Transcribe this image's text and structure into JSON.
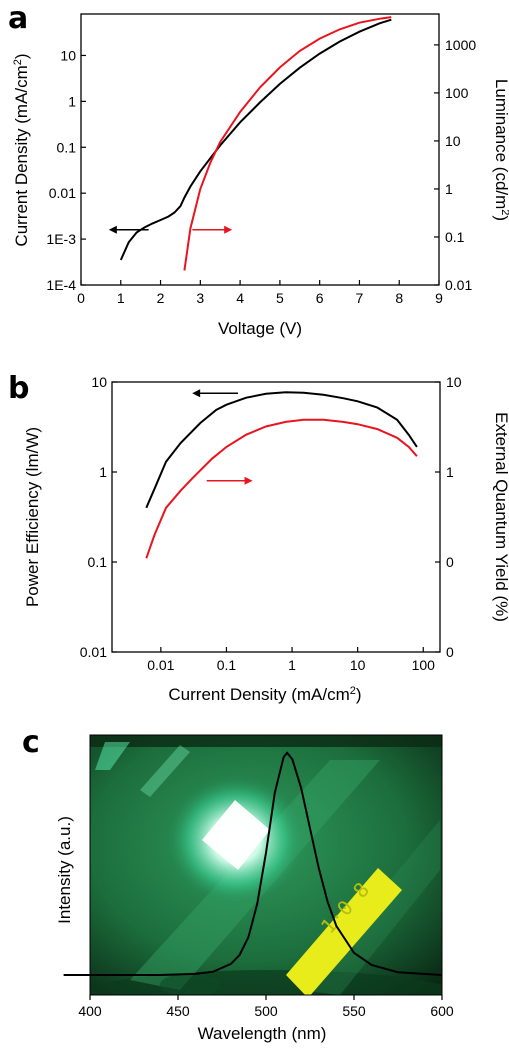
{
  "chart_data": [
    {
      "panel": "a",
      "type": "line",
      "xlabel": "Voltage (V)",
      "ylabel_left": "Current Density (mA/cm²)",
      "ylabel_right": "Luminance (cd/m²)",
      "x_ticks": [
        "0",
        "1",
        "2",
        "3",
        "4",
        "5",
        "6",
        "7",
        "8",
        "9"
      ],
      "y_left_ticks": [
        "1E-4",
        "1E-3",
        "0.01",
        "0.1",
        "1",
        "10"
      ],
      "y_right_ticks": [
        "0.01",
        "0.1",
        "1",
        "10",
        "100",
        "1000"
      ],
      "xlim": [
        0,
        9
      ],
      "ylim_left": [
        0.0001,
        80
      ],
      "ylim_right": [
        0.01,
        4400
      ],
      "yscale": "log",
      "series": [
        {
          "axis": "left",
          "color": "#000000",
          "x": [
            1.0,
            1.2,
            1.4,
            1.6,
            1.8,
            2.0,
            2.2,
            2.35,
            2.5,
            2.6,
            2.75,
            3.0,
            3.5,
            4.0,
            4.5,
            5.0,
            5.5,
            6.0,
            6.5,
            7.0,
            7.5,
            7.8
          ],
          "y": [
            0.00035,
            0.00085,
            0.0014,
            0.0018,
            0.0022,
            0.0026,
            0.0031,
            0.0038,
            0.0052,
            0.008,
            0.014,
            0.03,
            0.11,
            0.35,
            0.95,
            2.4,
            5.4,
            11,
            20,
            33,
            50,
            60
          ]
        },
        {
          "axis": "right",
          "color": "#e8141e",
          "x": [
            2.6,
            2.75,
            3.0,
            3.25,
            3.5,
            4.0,
            4.5,
            5.0,
            5.5,
            6.0,
            6.5,
            7.0,
            7.5,
            7.8
          ],
          "y": [
            0.02,
            0.15,
            1.0,
            3.5,
            9.5,
            40,
            130,
            340,
            750,
            1350,
            2100,
            2900,
            3500,
            3800
          ]
        }
      ],
      "arrows": [
        {
          "from_x": 1.7,
          "to_x": 0.7,
          "y": 0.0016,
          "color": "#000000"
        },
        {
          "from_x": 2.8,
          "to_x": 3.8,
          "y": 0.0016,
          "color": "#e8141e"
        }
      ]
    },
    {
      "panel": "b",
      "type": "line",
      "xlabel": "Current Density (mA/cm²)",
      "ylabel_left": "Power Efficiency (lm/W)",
      "ylabel_right": "External Quantum Yield (%)",
      "x_ticks": [
        "0.01",
        "0.1",
        "1",
        "10",
        "100"
      ],
      "y_left_ticks": [
        "0.01",
        "0.1",
        "1",
        "10"
      ],
      "y_right_ticks": [
        "0",
        "0",
        "1",
        "10"
      ],
      "xlim": [
        0.0018,
        180
      ],
      "ylim_left": [
        0.01,
        10
      ],
      "ylim_right": [
        0.01,
        10
      ],
      "xscale": "log",
      "yscale": "log",
      "series": [
        {
          "axis": "left",
          "color": "#000000",
          "x": [
            0.006,
            0.008,
            0.012,
            0.02,
            0.04,
            0.07,
            0.1,
            0.2,
            0.4,
            0.8,
            1.5,
            3,
            6,
            10,
            20,
            40,
            60,
            80
          ],
          "y": [
            0.4,
            0.65,
            1.3,
            2.1,
            3.5,
            4.9,
            5.6,
            6.7,
            7.4,
            7.7,
            7.6,
            7.2,
            6.6,
            6.1,
            5.2,
            3.8,
            2.6,
            1.9
          ]
        },
        {
          "axis": "right",
          "color": "#e8141e",
          "x": [
            0.006,
            0.008,
            0.012,
            0.02,
            0.03,
            0.06,
            0.1,
            0.2,
            0.4,
            0.8,
            1.5,
            3,
            6,
            10,
            20,
            40,
            60,
            80
          ],
          "y": [
            0.11,
            0.2,
            0.4,
            0.62,
            0.85,
            1.4,
            1.9,
            2.6,
            3.2,
            3.6,
            3.8,
            3.8,
            3.6,
            3.4,
            3.0,
            2.4,
            1.9,
            1.5
          ]
        }
      ],
      "arrows": [
        {
          "from_x": 0.15,
          "to_x": 0.03,
          "y": 7.5,
          "color": "#000000"
        },
        {
          "from_x": 0.05,
          "to_x": 0.25,
          "y": 0.8,
          "color": "#e8141e"
        }
      ]
    },
    {
      "panel": "c",
      "type": "line",
      "xlabel": "Wavelength (nm)",
      "ylabel": "Intensity (a.u.)",
      "x_ticks": [
        "400",
        "450",
        "500",
        "550",
        "600"
      ],
      "xlim": [
        400,
        600
      ],
      "ylim": [
        0,
        1.08
      ],
      "background": "photograph of the glowing green device",
      "series": [
        {
          "color": "#000000",
          "x": [
            400,
            440,
            460,
            470,
            480,
            485,
            490,
            495,
            500,
            505,
            510,
            512,
            515,
            520,
            525,
            530,
            535,
            540,
            550,
            560,
            575,
            600
          ],
          "y": [
            0.0,
            0.0,
            0.005,
            0.015,
            0.05,
            0.09,
            0.17,
            0.32,
            0.55,
            0.82,
            0.98,
            1.0,
            0.97,
            0.84,
            0.66,
            0.48,
            0.33,
            0.22,
            0.1,
            0.045,
            0.012,
            0.0
          ]
        }
      ]
    }
  ],
  "labels": {
    "a": "a",
    "b": "b",
    "c": "c",
    "a_x": "Voltage (V)",
    "a_yl": "Current Density (mA/cm",
    "a_yl_sup": "2",
    "a_yr": "Luminance (cd/m",
    "a_yr_sup": "2",
    "b_x": "Current Density (mA/cm",
    "b_x_sup": "2",
    "b_yl": "Power Efficiency (lm/W)",
    "b_yr": "External Quantum Yield (%)",
    "c_x": "Wavelength (nm)",
    "c_y": "Intensity (a.u.)"
  },
  "colors": {
    "black_series": "#000000",
    "red_series": "#e8141e",
    "photo_green": "#1e7a45"
  }
}
